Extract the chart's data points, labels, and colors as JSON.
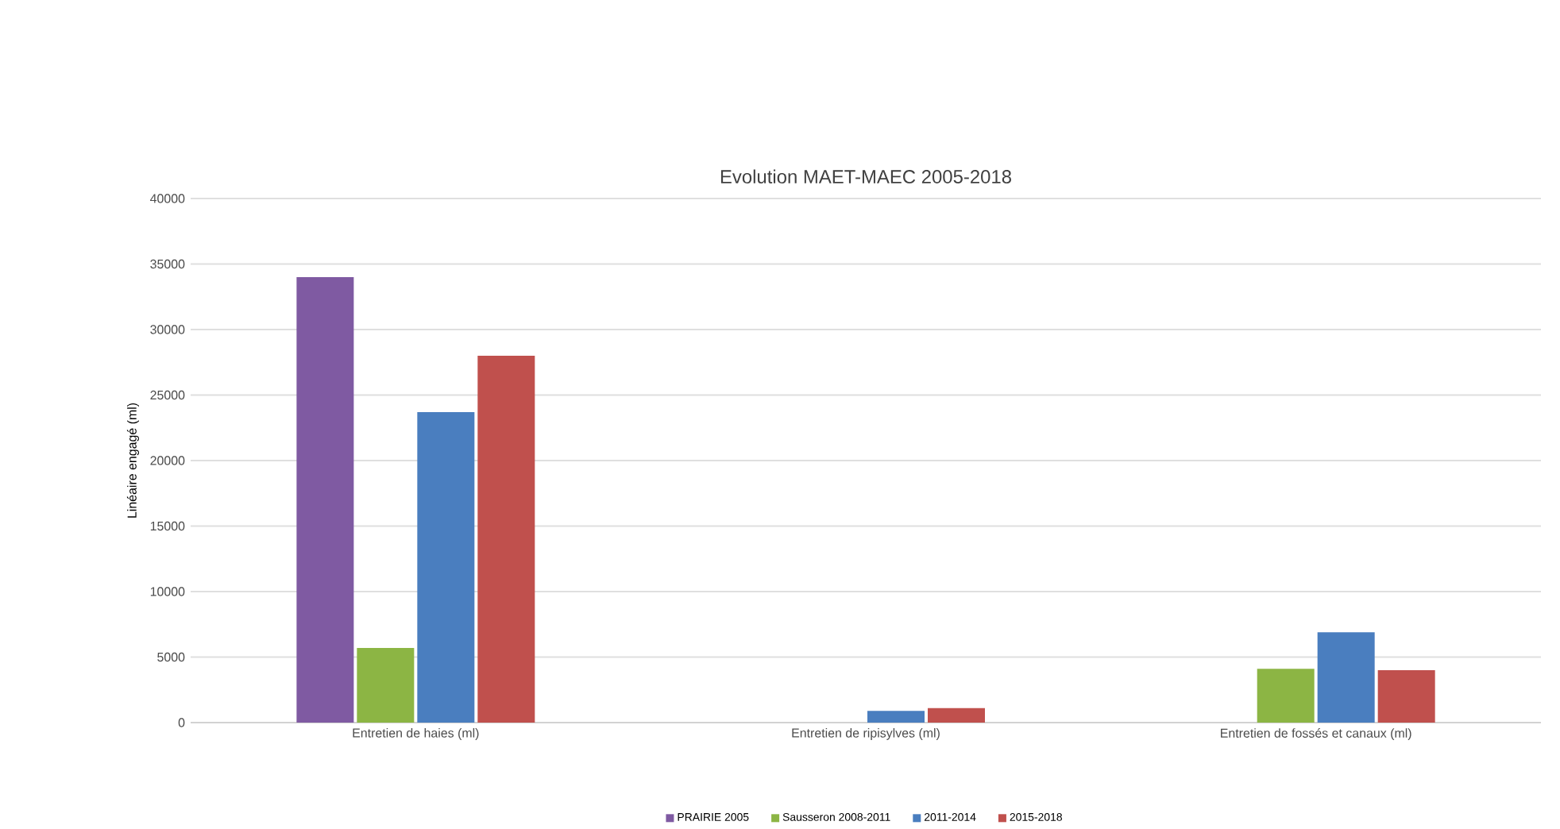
{
  "chart_data": {
    "type": "bar",
    "title": "Evolution MAET-MAEC 2005-2018",
    "ylabel": "Linéaire engagé (ml)",
    "categories": [
      "Entretien de haies (ml)",
      "Entretien de ripisylves (ml)",
      "Entretien de fossés et canaux (ml)"
    ],
    "series": [
      {
        "name": "PRAIRIE 2005",
        "color": "#7f5aa2",
        "values": [
          34000,
          null,
          null
        ]
      },
      {
        "name": "Sausseron 2008-2011",
        "color": "#8cb544",
        "values": [
          5700,
          null,
          4100
        ]
      },
      {
        "name": "2011-2014",
        "color": "#4a7ebf",
        "values": [
          23700,
          900,
          6900
        ]
      },
      {
        "name": "2015-2018",
        "color": "#c0504d",
        "values": [
          28000,
          1100,
          4000
        ]
      }
    ],
    "ylim": [
      0,
      40000
    ],
    "yticks": [
      0,
      5000,
      10000,
      15000,
      20000,
      25000,
      30000,
      35000,
      40000
    ],
    "grid": "y",
    "legend": "bottom"
  }
}
